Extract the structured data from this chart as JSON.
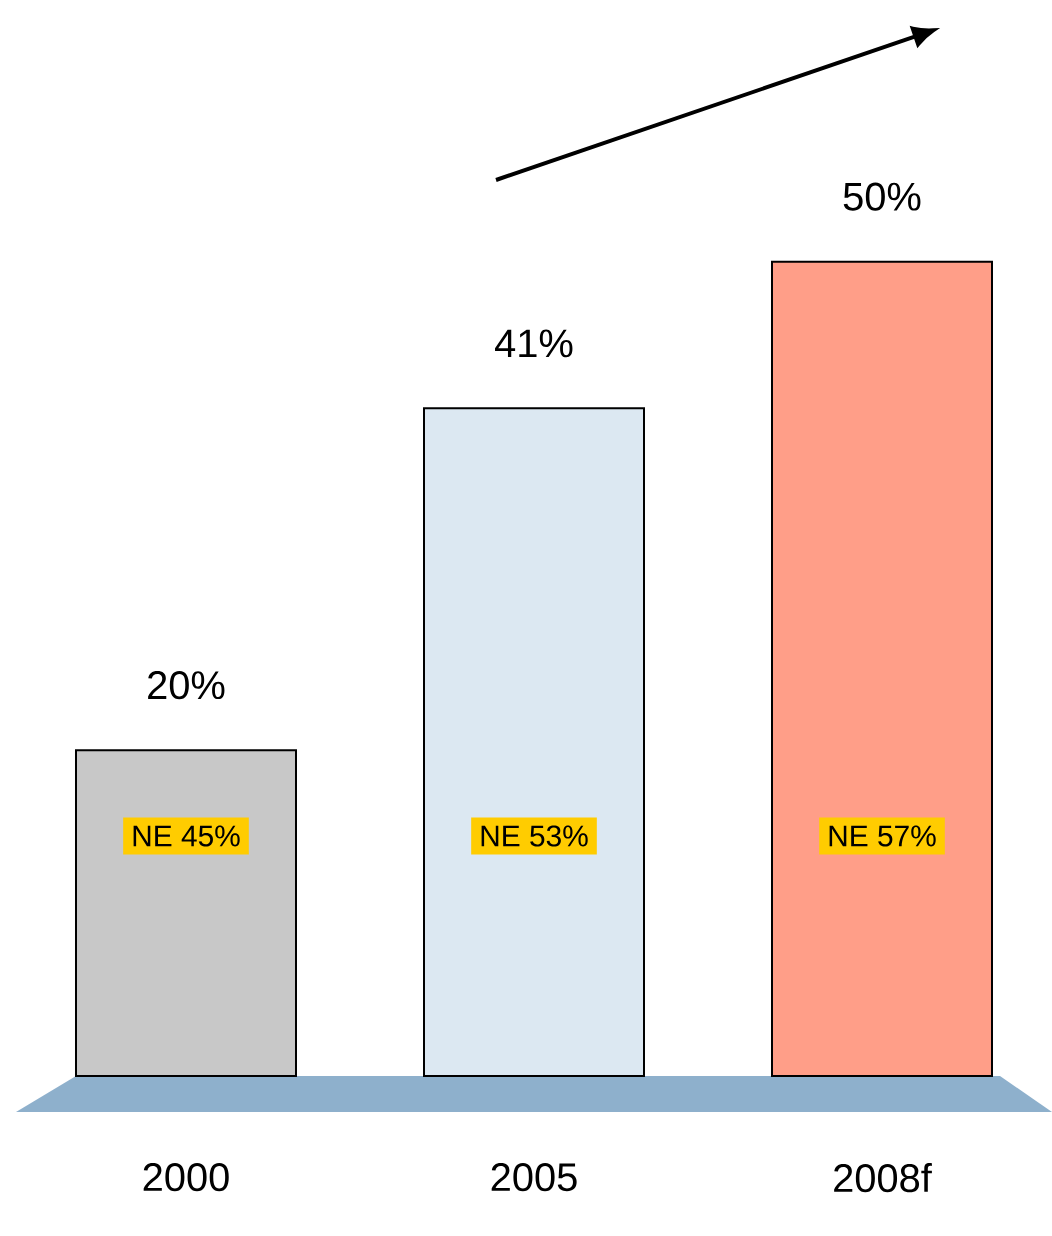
{
  "chart_data": {
    "type": "bar",
    "categories": [
      "2000",
      "2005",
      "2008f"
    ],
    "values": [
      20,
      41,
      50
    ],
    "value_labels": [
      "20%",
      "41%",
      "50%"
    ],
    "colors": [
      "#c8c8c8",
      "#dce8f2",
      "#ff9e88"
    ],
    "annotations": [
      "NE 45%",
      "NE 53%",
      "NE 57%"
    ]
  }
}
